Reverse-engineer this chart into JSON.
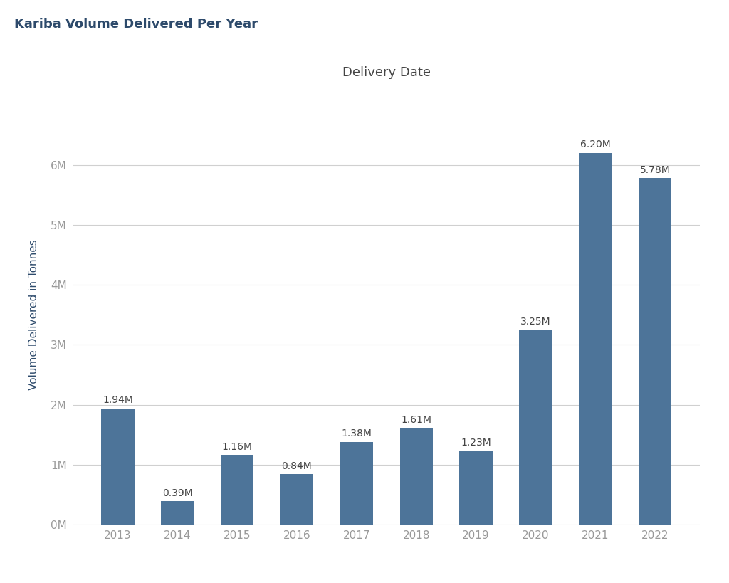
{
  "title_main": "Kariba Volume Delivered Per Year",
  "title_axis": "Delivery Date",
  "ylabel": "Volume Delivered in Tonnes",
  "categories": [
    "2013",
    "2014",
    "2015",
    "2016",
    "2017",
    "2018",
    "2019",
    "2020",
    "2021",
    "2022"
  ],
  "values": [
    1940000,
    390000,
    1160000,
    840000,
    1380000,
    1610000,
    1230000,
    3250000,
    6200000,
    5780000
  ],
  "labels": [
    "1.94M",
    "0.39M",
    "1.16M",
    "0.84M",
    "1.38M",
    "1.61M",
    "1.23M",
    "3.25M",
    "6.20M",
    "5.78M"
  ],
  "bar_color": "#4d7499",
  "background_color": "#ffffff",
  "grid_color": "#d0d0d0",
  "title_main_color": "#2d4a6b",
  "title_axis_color": "#444444",
  "label_color": "#444444",
  "tick_color": "#999999",
  "ylabel_color": "#2d4a6b",
  "ylim": [
    0,
    7000000
  ],
  "yticks": [
    0,
    1000000,
    2000000,
    3000000,
    4000000,
    5000000,
    6000000
  ],
  "ytick_labels": [
    "0M",
    "1M",
    "2M",
    "3M",
    "4M",
    "5M",
    "6M"
  ]
}
